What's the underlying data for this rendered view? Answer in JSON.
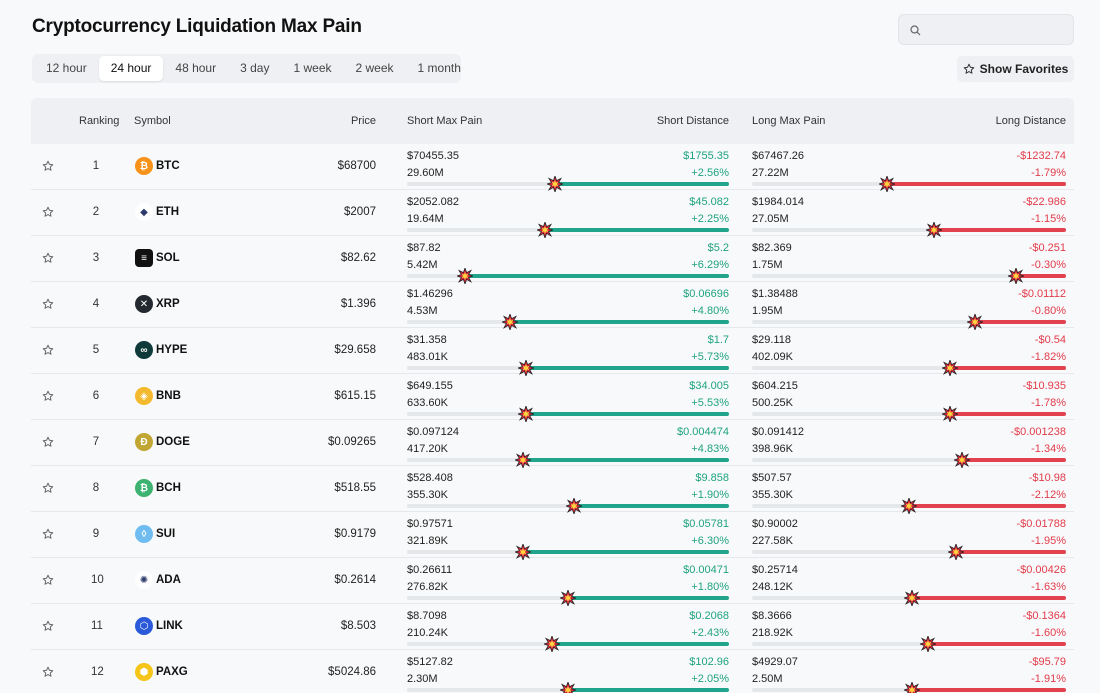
{
  "page": {
    "title": "Cryptocurrency Liquidation Max Pain"
  },
  "search": {
    "placeholder": ""
  },
  "tabs": [
    {
      "label": "12 hour",
      "active": false
    },
    {
      "label": "24 hour",
      "active": true
    },
    {
      "label": "48 hour",
      "active": false
    },
    {
      "label": "3 day",
      "active": false
    },
    {
      "label": "1 week",
      "active": false
    },
    {
      "label": "2 week",
      "active": false
    },
    {
      "label": "1 month",
      "active": false
    }
  ],
  "favorites_button": {
    "label": "Show Favorites"
  },
  "table": {
    "headers": {
      "ranking": "Ranking",
      "symbol": "Symbol",
      "price": "Price",
      "short_max_pain": "Short Max Pain",
      "short_distance": "Short Distance",
      "long_max_pain": "Long Max Pain",
      "long_distance": "Long Distance"
    },
    "rows": [
      {
        "rank": "1",
        "symbol": "BTC",
        "icon": "bitcoin-icon",
        "icon_color": "#f7931a",
        "icon_glyph": "₿",
        "price": "$68700",
        "short_price": "$70455.35",
        "short_vol": "29.60M",
        "short_dist": "$1755.35",
        "short_pct": "+2.56%",
        "short_level": 0.54,
        "long_price": "$67467.26",
        "long_vol": "27.22M",
        "long_dist": "-$1232.74",
        "long_pct": "-1.79%",
        "long_level": 0.57
      },
      {
        "rank": "2",
        "symbol": "ETH",
        "icon": "ethereum-icon",
        "icon_color": "#ffffff",
        "icon_glyph": "◆",
        "price": "$2007",
        "short_price": "$2052.082",
        "short_vol": "19.64M",
        "short_dist": "$45.082",
        "short_pct": "+2.25%",
        "short_level": 0.57,
        "long_price": "$1984.014",
        "long_vol": "27.05M",
        "long_dist": "-$22.986",
        "long_pct": "-1.15%",
        "long_level": 0.42
      },
      {
        "rank": "3",
        "symbol": "SOL",
        "icon": "solana-icon",
        "icon_color": "#111111",
        "icon_glyph": "≡",
        "price": "$82.62",
        "short_price": "$87.82",
        "short_vol": "5.42M",
        "short_dist": "$5.2",
        "short_pct": "+6.29%",
        "short_level": 0.82,
        "long_price": "$82.369",
        "long_vol": "1.75M",
        "long_dist": "-$0.251",
        "long_pct": "-0.30%",
        "long_level": 0.16
      },
      {
        "rank": "4",
        "symbol": "XRP",
        "icon": "xrp-icon",
        "icon_color": "#23292f",
        "icon_glyph": "✕",
        "price": "$1.396",
        "short_price": "$1.46296",
        "short_vol": "4.53M",
        "short_dist": "$0.06696",
        "short_pct": "+4.80%",
        "short_level": 0.68,
        "long_price": "$1.38488",
        "long_vol": "1.95M",
        "long_dist": "-$0.01112",
        "long_pct": "-0.80%",
        "long_level": 0.29
      },
      {
        "rank": "5",
        "symbol": "HYPE",
        "icon": "hyperliquid-icon",
        "icon_color": "#0f3a3a",
        "icon_glyph": "∞",
        "price": "$29.658",
        "short_price": "$31.358",
        "short_vol": "483.01K",
        "short_dist": "$1.7",
        "short_pct": "+5.73%",
        "short_level": 0.63,
        "long_price": "$29.118",
        "long_vol": "402.09K",
        "long_dist": "-$0.54",
        "long_pct": "-1.82%",
        "long_level": 0.37
      },
      {
        "rank": "6",
        "symbol": "BNB",
        "icon": "bnb-icon",
        "icon_color": "#f3ba2f",
        "icon_glyph": "◈",
        "price": "$615.15",
        "short_price": "$649.155",
        "short_vol": "633.60K",
        "short_dist": "$34.005",
        "short_pct": "+5.53%",
        "short_level": 0.63,
        "long_price": "$604.215",
        "long_vol": "500.25K",
        "long_dist": "-$10.935",
        "long_pct": "-1.78%",
        "long_level": 0.37
      },
      {
        "rank": "7",
        "symbol": "DOGE",
        "icon": "doge-icon",
        "icon_color": "#c2a633",
        "icon_glyph": "Ð",
        "price": "$0.09265",
        "short_price": "$0.097124",
        "short_vol": "417.20K",
        "short_dist": "$0.004474",
        "short_pct": "+4.83%",
        "short_level": 0.64,
        "long_price": "$0.091412",
        "long_vol": "398.96K",
        "long_dist": "-$0.001238",
        "long_pct": "-1.34%",
        "long_level": 0.33
      },
      {
        "rank": "8",
        "symbol": "BCH",
        "icon": "bitcoin-cash-icon",
        "icon_color": "#3cb371",
        "icon_glyph": "₿",
        "price": "$518.55",
        "short_price": "$528.408",
        "short_vol": "355.30K",
        "short_dist": "$9.858",
        "short_pct": "+1.90%",
        "short_level": 0.48,
        "long_price": "$507.57",
        "long_vol": "355.30K",
        "long_dist": "-$10.98",
        "long_pct": "-2.12%",
        "long_level": 0.5
      },
      {
        "rank": "9",
        "symbol": "SUI",
        "icon": "sui-icon",
        "icon_color": "#6fbcf0",
        "icon_glyph": "◊",
        "price": "$0.9179",
        "short_price": "$0.97571",
        "short_vol": "321.89K",
        "short_dist": "$0.05781",
        "short_pct": "+6.30%",
        "short_level": 0.64,
        "long_price": "$0.90002",
        "long_vol": "227.58K",
        "long_dist": "-$0.01788",
        "long_pct": "-1.95%",
        "long_level": 0.35
      },
      {
        "rank": "10",
        "symbol": "ADA",
        "icon": "cardano-icon",
        "icon_color": "#ffffff",
        "icon_glyph": "✺",
        "price": "$0.2614",
        "short_price": "$0.26611",
        "short_vol": "276.82K",
        "short_dist": "$0.00471",
        "short_pct": "+1.80%",
        "short_level": 0.5,
        "long_price": "$0.25714",
        "long_vol": "248.12K",
        "long_dist": "-$0.00426",
        "long_pct": "-1.63%",
        "long_level": 0.49
      },
      {
        "rank": "11",
        "symbol": "LINK",
        "icon": "chainlink-icon",
        "icon_color": "#2a5ada",
        "icon_glyph": "⬡",
        "price": "$8.503",
        "short_price": "$8.7098",
        "short_vol": "210.24K",
        "short_dist": "$0.2068",
        "short_pct": "+2.43%",
        "short_level": 0.55,
        "long_price": "$8.3666",
        "long_vol": "218.92K",
        "long_dist": "-$0.1364",
        "long_pct": "-1.60%",
        "long_level": 0.44
      },
      {
        "rank": "12",
        "symbol": "PAXG",
        "icon": "paxg-icon",
        "icon_color": "#f5c518",
        "icon_glyph": "⬢",
        "price": "$5024.86",
        "short_price": "$5127.82",
        "short_vol": "2.30M",
        "short_dist": "$102.96",
        "short_pct": "+2.05%",
        "short_level": 0.5,
        "long_price": "$4929.07",
        "long_vol": "2.50M",
        "long_dist": "-$95.79",
        "long_pct": "-1.91%",
        "long_level": 0.49
      }
    ]
  }
}
